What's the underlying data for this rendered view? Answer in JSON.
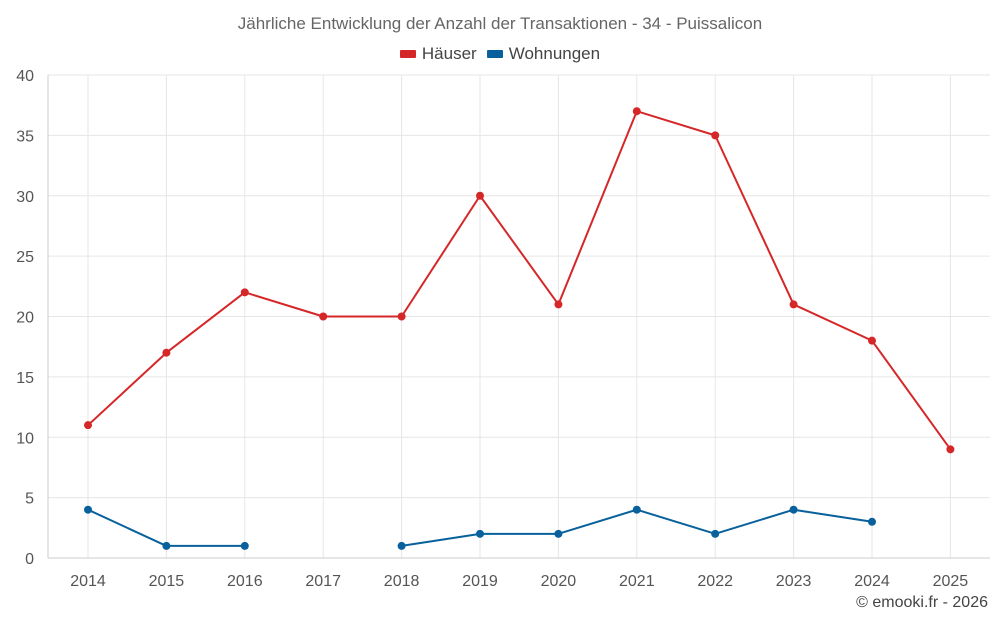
{
  "colors": {
    "hauser": "#d62728",
    "wohnungen": "#08619c",
    "grid": "#e6e6e6",
    "axis": "#cccccc"
  },
  "chart_data": {
    "type": "line",
    "title": "Jährliche Entwicklung der Anzahl der Transaktionen - 34 - Puissalicon",
    "categories": [
      "2014",
      "2015",
      "2016",
      "2017",
      "2018",
      "2019",
      "2020",
      "2021",
      "2022",
      "2023",
      "2024",
      "2025"
    ],
    "ylim": [
      0,
      40
    ],
    "yticks": [
      "0",
      "5",
      "10",
      "15",
      "20",
      "25",
      "30",
      "35",
      "40"
    ],
    "grid": true,
    "legend": "top-center",
    "series": [
      {
        "name": "Häuser",
        "color": "#d62728",
        "values": [
          11,
          17,
          22,
          20,
          20,
          30,
          21,
          37,
          35,
          21,
          18,
          9
        ]
      },
      {
        "name": "Wohnungen",
        "color": "#08619c",
        "values": [
          4,
          1,
          1,
          null,
          1,
          2,
          2,
          4,
          2,
          4,
          3,
          null
        ]
      }
    ]
  },
  "credit": "© emooki.fr - 2026"
}
